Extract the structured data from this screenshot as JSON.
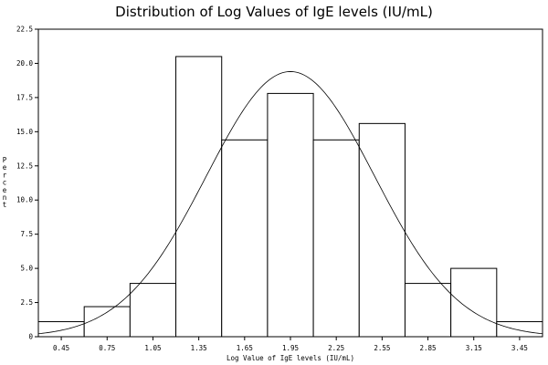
{
  "chart_data": {
    "type": "bar",
    "title": "Distribution of Log Values of IgE levels (IU/mL)",
    "xlabel": "Log Value of IgE levels (IU/mL)",
    "ylabel": "Percent",
    "xlim": [
      0.3,
      3.6
    ],
    "ylim": [
      0,
      22.5
    ],
    "xticks": [
      "0.45",
      "0.75",
      "1.05",
      "1.35",
      "1.65",
      "1.95",
      "2.25",
      "2.55",
      "2.85",
      "3.15",
      "3.45"
    ],
    "yticks": [
      "0",
      "2.5",
      "5.0",
      "7.5",
      "10.0",
      "12.5",
      "15.0",
      "17.5",
      "20.0",
      "22.5"
    ],
    "bin_width": 0.3,
    "categories": [
      "0.45",
      "0.75",
      "1.05",
      "1.35",
      "1.65",
      "1.95",
      "2.25",
      "2.55",
      "2.85",
      "3.15",
      "3.45"
    ],
    "values": [
      1.1,
      2.2,
      3.9,
      20.5,
      14.4,
      17.8,
      14.4,
      15.6,
      3.9,
      5.0,
      1.1
    ],
    "normal_curve": {
      "mean": 1.95,
      "sd": 0.55,
      "peak": 19.4
    },
    "grid": false,
    "legend": "none"
  }
}
